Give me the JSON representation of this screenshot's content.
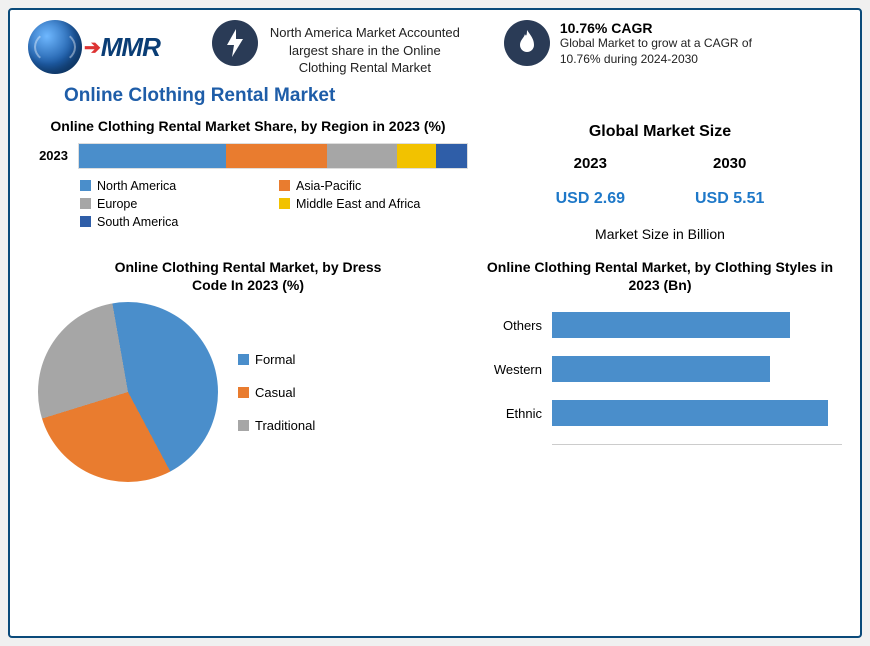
{
  "colors": {
    "blue": "#4a8ecb",
    "orange": "#e97c2f",
    "grey": "#a6a6a6",
    "yellow": "#f2c200",
    "dblue": "#2f5ea8",
    "navy": "#2a3b56",
    "brand": "#1e5da8",
    "linkblue": "#1e78c8"
  },
  "brand": {
    "name": "MMR"
  },
  "callout1": {
    "text": "North America Market Accounted largest share in the Online Clothing Rental Market"
  },
  "callout2": {
    "title": "10.76% CAGR",
    "text": "Global Market to grow at a CAGR of 10.76% during 2024-2030"
  },
  "main_title": "Online Clothing Rental Market",
  "region_chart": {
    "title": "Online Clothing Rental Market Share, by Region in 2023 (%)",
    "year_label": "2023",
    "segments": [
      {
        "label": "North America",
        "pct": 38,
        "color": "#4a8ecb"
      },
      {
        "label": "Asia-Pacific",
        "pct": 26,
        "color": "#e97c2f"
      },
      {
        "label": "Europe",
        "pct": 18,
        "color": "#a6a6a6"
      },
      {
        "label": "Middle East and Africa",
        "pct": 10,
        "color": "#f2c200"
      },
      {
        "label": "South America",
        "pct": 8,
        "color": "#2f5ea8"
      }
    ]
  },
  "market_size": {
    "title": "Global Market Size",
    "unit": "Market Size in Billion",
    "cols": [
      {
        "year": "2023",
        "value": "USD 2.69"
      },
      {
        "year": "2030",
        "value": "USD 5.51"
      }
    ]
  },
  "pie_chart": {
    "title": "Online Clothing Rental Market, by Dress Code In 2023 (%)",
    "slices": [
      {
        "label": "Formal",
        "pct": 45,
        "color": "#4a8ecb"
      },
      {
        "label": "Casual",
        "pct": 28,
        "color": "#e97c2f"
      },
      {
        "label": "Traditional",
        "pct": 27,
        "color": "#a6a6a6"
      }
    ]
  },
  "hbar_chart": {
    "title": "Online Clothing Rental Market, by Clothing Styles in 2023 (Bn)",
    "bar_color": "#4a8ecb",
    "max": 1.0,
    "bars": [
      {
        "label": "Others",
        "value": 0.82
      },
      {
        "label": "Western",
        "value": 0.75
      },
      {
        "label": "Ethnic",
        "value": 0.95
      }
    ]
  }
}
